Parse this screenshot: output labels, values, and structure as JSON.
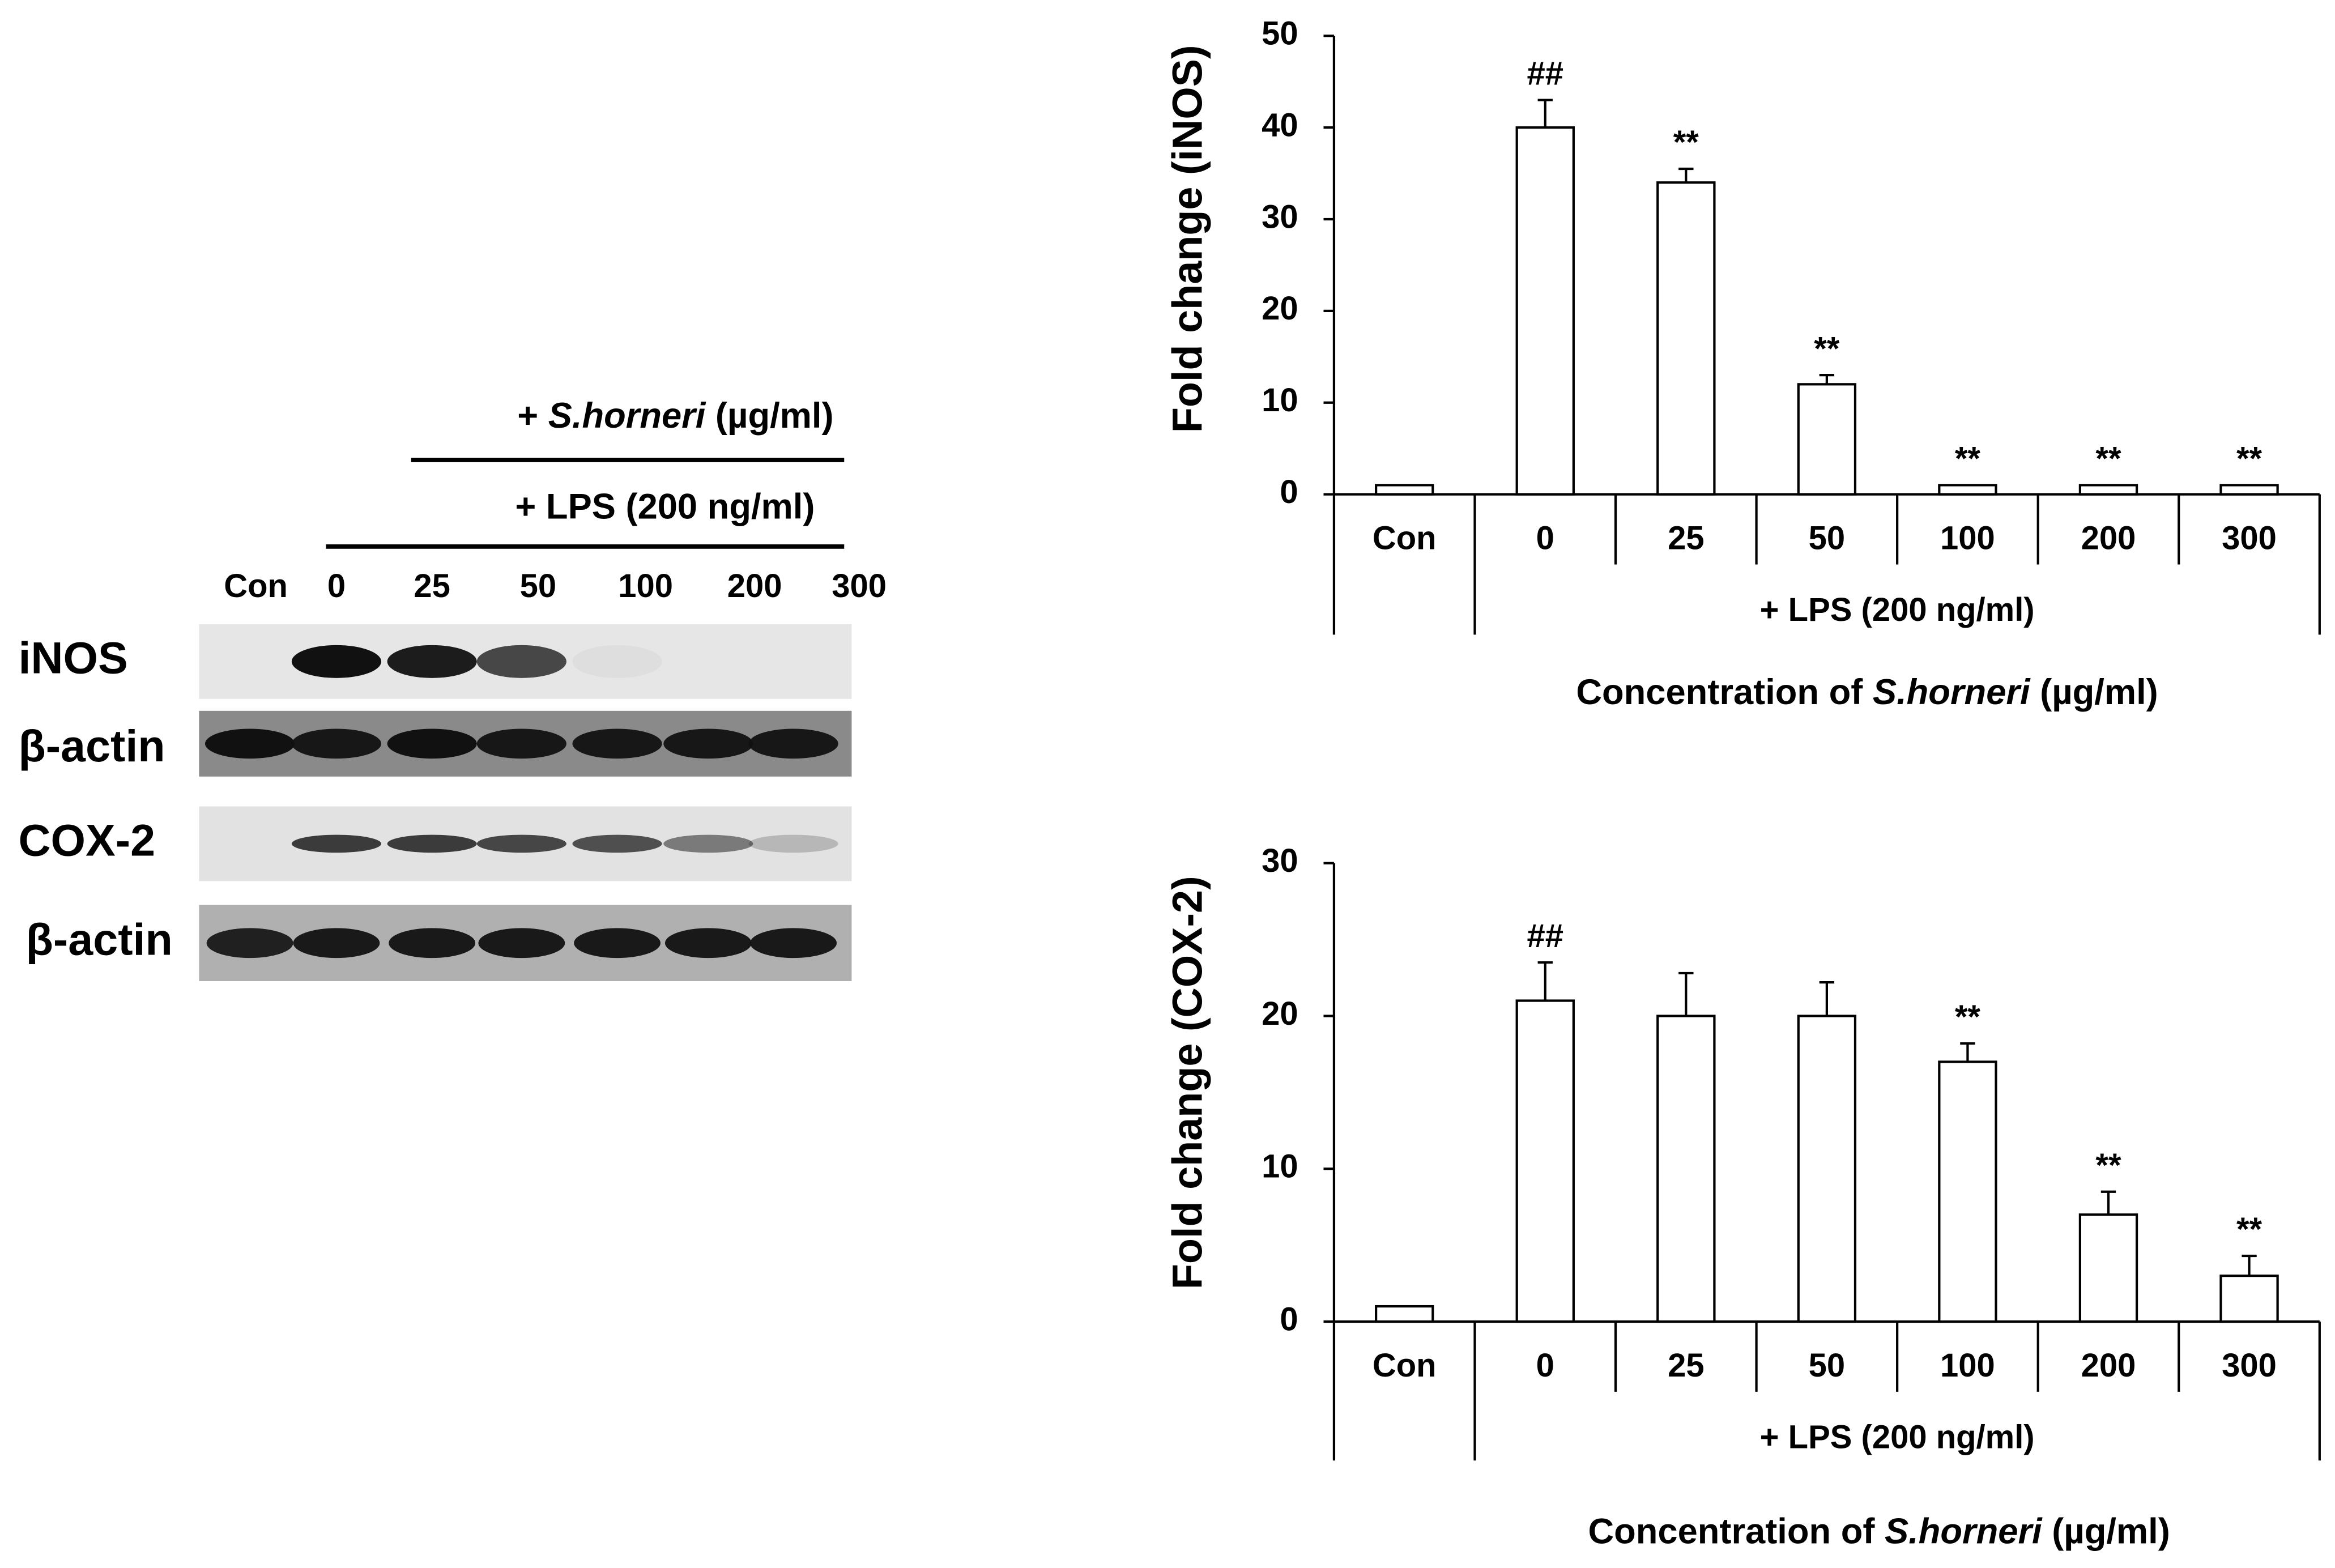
{
  "blot": {
    "header_top": [
      "+ ",
      "S.horneri",
      " (µg/ml)"
    ],
    "header_lps": "+ LPS (200 ng/ml)",
    "lanes": [
      "Con",
      "0",
      "25",
      "50",
      "100",
      "200",
      "300"
    ],
    "rows": [
      "iNOS",
      "β-actin",
      "COX-2",
      "β-actin"
    ]
  },
  "chart_data": [
    {
      "type": "bar",
      "ylabel": "Fold change (iNOS)",
      "categories": [
        "Con",
        "0",
        "25",
        "50",
        "100",
        "200",
        "300"
      ],
      "values": [
        1,
        40,
        34,
        12,
        1,
        1,
        1
      ],
      "errors": [
        0,
        3,
        1.5,
        1,
        0,
        0,
        0
      ],
      "annotations": [
        null,
        "##",
        "**",
        "**",
        "**",
        "**",
        "**"
      ],
      "group_label": "+ LPS (200 ng/ml)",
      "xlabel": [
        "Concentration of ",
        "S.horneri",
        " (µg/ml)"
      ],
      "color": "#ffffff",
      "ylim": [
        0,
        50
      ],
      "yticks": [
        0,
        10,
        20,
        30,
        40,
        50
      ]
    },
    {
      "type": "bar",
      "ylabel": "Fold change (COX-2)",
      "categories": [
        "Con",
        "0",
        "25",
        "50",
        "100",
        "200",
        "300"
      ],
      "values": [
        1,
        21,
        20,
        20,
        17,
        7,
        3
      ],
      "errors": [
        0,
        2.5,
        2.8,
        2.2,
        1.2,
        1.5,
        1.3
      ],
      "annotations": [
        null,
        "##",
        null,
        null,
        "**",
        "**",
        "**"
      ],
      "group_label": "+ LPS (200 ng/ml)",
      "xlabel": [
        "Concentration of ",
        "S.horneri",
        " (µg/ml)"
      ],
      "color": "#ffffff",
      "ylim": [
        0,
        30
      ],
      "yticks": [
        0,
        10,
        20,
        30
      ]
    }
  ]
}
